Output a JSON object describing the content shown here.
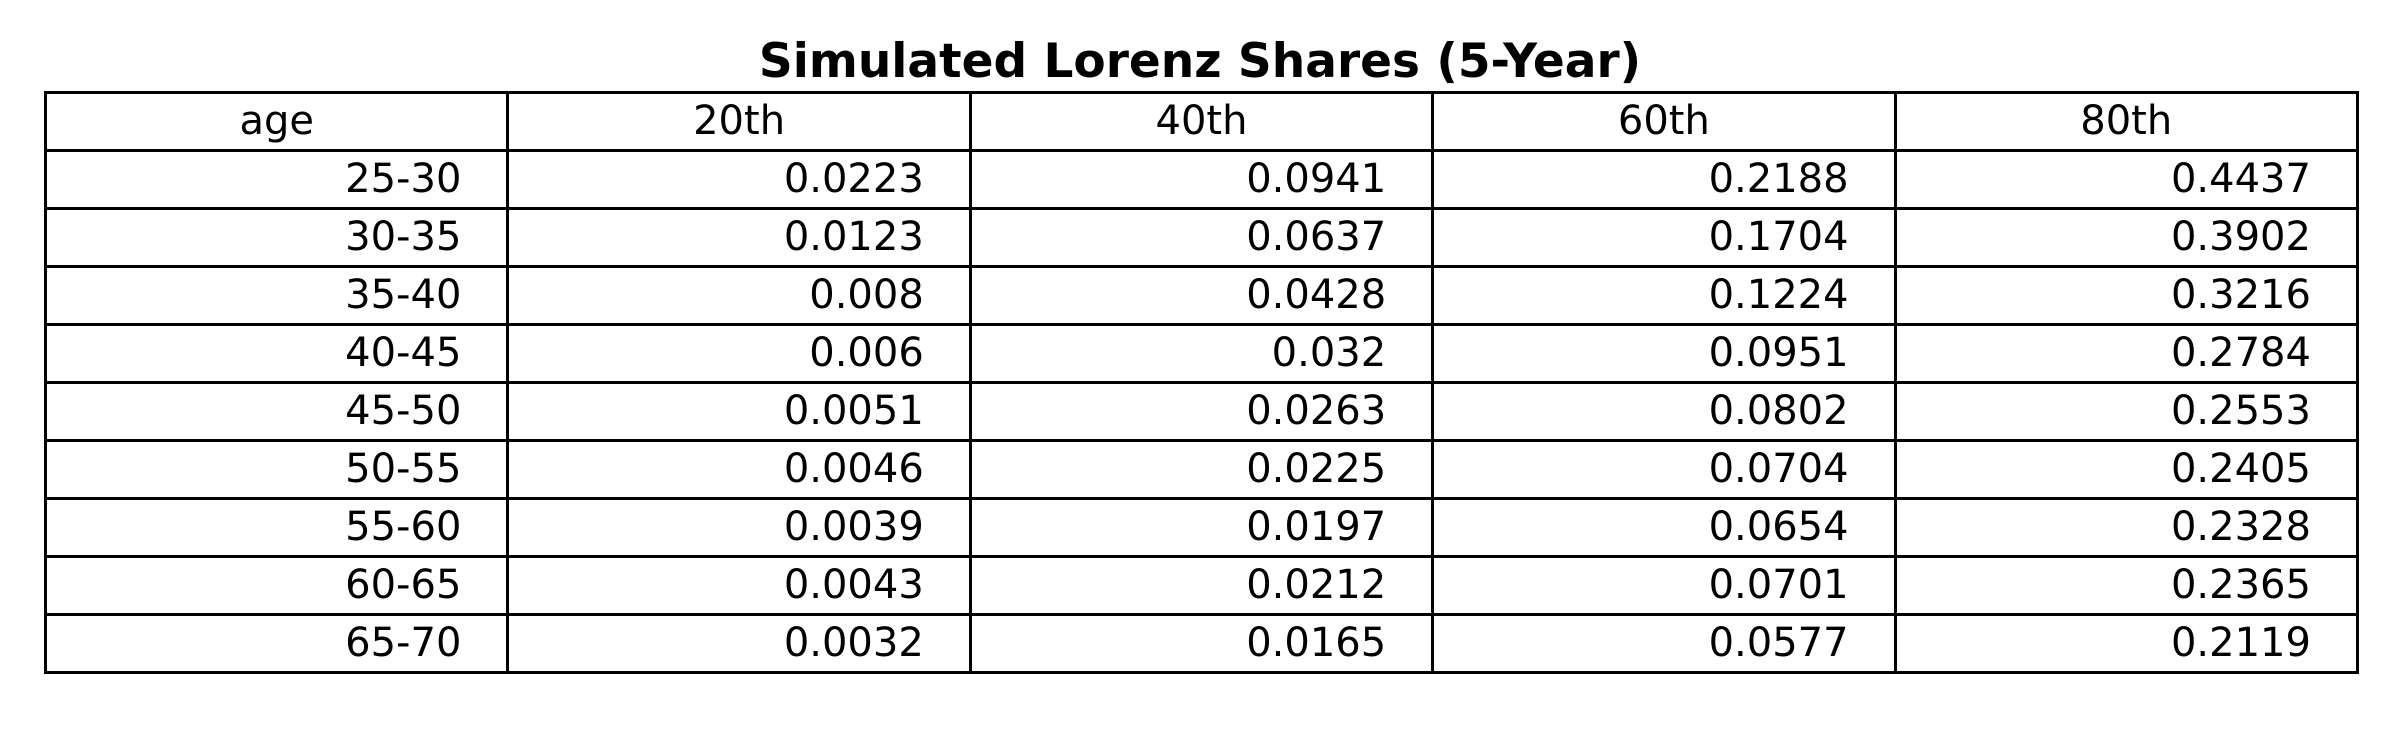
{
  "chart_data": {
    "type": "table",
    "title": "Simulated Lorenz Shares (5-Year)",
    "columns": [
      "age",
      "20th",
      "40th",
      "60th",
      "80th"
    ],
    "rows": [
      [
        "25-30",
        "0.0223",
        "0.0941",
        "0.2188",
        "0.4437"
      ],
      [
        "30-35",
        "0.0123",
        "0.0637",
        "0.1704",
        "0.3902"
      ],
      [
        "35-40",
        "0.008",
        "0.0428",
        "0.1224",
        "0.3216"
      ],
      [
        "40-45",
        "0.006",
        "0.032",
        "0.0951",
        "0.2784"
      ],
      [
        "45-50",
        "0.0051",
        "0.0263",
        "0.0802",
        "0.2553"
      ],
      [
        "50-55",
        "0.0046",
        "0.0225",
        "0.0704",
        "0.2405"
      ],
      [
        "55-60",
        "0.0039",
        "0.0197",
        "0.0654",
        "0.2328"
      ],
      [
        "60-65",
        "0.0043",
        "0.0212",
        "0.0701",
        "0.2365"
      ],
      [
        "65-70",
        "0.0032",
        "0.0165",
        "0.0577",
        "0.2119"
      ]
    ]
  }
}
